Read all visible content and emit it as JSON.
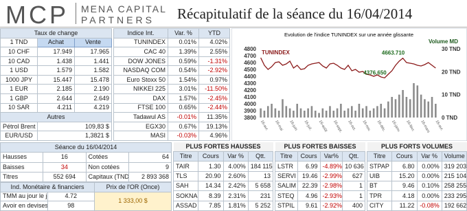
{
  "header": {
    "logo": "MCP",
    "company_line1": "MENA CAPITAL",
    "company_line2": "PARTNERS",
    "title": "Récapitulatif de la séance du 16/04/2014"
  },
  "exchange_rates": {
    "title": "Taux de change",
    "columns": [
      "1 TND",
      "Achat",
      "Vente"
    ],
    "rows": [
      [
        "10 CHF",
        "17.949",
        "17.965"
      ],
      [
        "10 CAD",
        "1.438",
        "1.441"
      ],
      [
        "1 USD",
        "1.579",
        "1.582"
      ],
      [
        "1000 JPY",
        "15.447",
        "15.478"
      ],
      [
        "1 EUR",
        "2.185",
        "2.190"
      ],
      [
        "1 GBP",
        "2.644",
        "2.649"
      ],
      [
        "10 SAR",
        "4.211",
        "4.219"
      ]
    ]
  },
  "others": {
    "title": "Autres",
    "rows": [
      [
        "Pétrol Brent",
        "109,83 $"
      ],
      [
        "EUR/USD",
        "1,3821 $"
      ]
    ]
  },
  "indices": {
    "columns": [
      "Indice Int.",
      "Var. %",
      "YTD"
    ],
    "rows": [
      [
        "TUNINDEX",
        "0.01%",
        "4.02%"
      ],
      [
        "CAC 40",
        "1.39%",
        "2.55%"
      ],
      [
        "DOW JONES",
        "0.59%",
        "-1.31%"
      ],
      [
        "NASDAQ COM",
        "0.54%",
        "-2.92%"
      ],
      [
        "Euro Stoxx 50",
        "1.54%",
        "0.97%"
      ],
      [
        "NIKKEI 225",
        "3.01%",
        "-11.50%"
      ],
      [
        "DAX",
        "1.57%",
        "-2.45%"
      ],
      [
        "FTSE 100",
        "0.65%",
        "-2.44%"
      ],
      [
        "Tadawul AS",
        "-0.01%",
        "11.35%"
      ],
      [
        "EGX30",
        "0.67%",
        "19.13%"
      ],
      [
        "MASI",
        "-0.03%",
        "4.96%"
      ]
    ]
  },
  "chart_data": {
    "type": "line",
    "title": "Evolution de l'indice TUNINDEX sur une année glissante",
    "categories": [
      "16-avr.",
      null,
      null,
      null,
      "16-mai",
      null,
      null,
      null,
      "16-juin",
      null,
      null,
      null,
      "16-juil.",
      null,
      null,
      null,
      "16-août",
      null,
      null,
      null,
      "16-sept.",
      null,
      null,
      null,
      "16-oct.",
      null,
      null,
      null,
      "16-nov.",
      null,
      null,
      null,
      "16-déc.",
      null,
      null,
      null,
      "16-janv.",
      null,
      null,
      null,
      "16-févr.",
      null,
      null,
      null,
      "16-mars",
      null,
      null,
      null,
      "16-avr."
    ],
    "series": [
      {
        "name": "TUNINDEX",
        "color": "#8b1a1a",
        "values": [
          4670,
          4560,
          4500,
          4540,
          4600,
          4610,
          4560,
          4580,
          4620,
          4520,
          4560,
          4500,
          4510,
          4560,
          4580,
          4590,
          4600,
          4550,
          4520,
          4580,
          4590,
          4560,
          4520,
          4500,
          4560,
          4480,
          4500,
          4460,
          4470,
          4430,
          4420,
          4400,
          4420,
          4390,
          4376.65,
          4430,
          4480,
          4560,
          4620,
          4663.71,
          4600,
          4590,
          4580,
          4560,
          4550,
          4570,
          4600,
          4560,
          4520
        ],
        "value_labels": [
          null,
          null,
          null,
          null,
          null,
          null,
          null,
          null,
          null,
          null,
          null,
          null,
          null,
          null,
          null,
          null,
          null,
          null,
          null,
          null,
          null,
          null,
          null,
          null,
          null,
          null,
          null,
          null,
          null,
          null,
          null,
          null,
          null,
          null,
          "4376.650",
          null,
          null,
          null,
          null,
          "4663.710",
          null,
          null,
          null,
          null,
          null,
          null,
          null,
          null,
          null
        ]
      },
      {
        "name": "Volume MD",
        "color": "#8c8c8c",
        "type": "bar",
        "axis": "y2",
        "values": [
          4,
          3,
          5,
          6,
          4,
          3,
          8,
          5,
          4,
          3,
          6,
          4,
          3,
          4,
          5,
          3,
          2,
          4,
          3,
          5,
          3,
          4,
          6,
          3,
          4,
          5,
          3,
          6,
          4,
          5,
          3,
          4,
          5,
          6,
          4,
          7,
          9,
          8,
          10,
          12,
          9,
          8,
          15,
          14,
          10,
          8,
          7,
          9,
          6
        ]
      }
    ],
    "ylim": [
      3800,
      4800
    ],
    "yticks": [
      3800,
      3900,
      4000,
      4100,
      4200,
      4300,
      4400,
      4500,
      4600,
      4700,
      4800
    ],
    "y2lim": [
      0,
      30
    ],
    "y2ticks": [
      {
        "value": 0,
        "label": "0 TND"
      },
      {
        "value": 10,
        "label": "10 TND"
      },
      {
        "value": 20,
        "label": "20 TND"
      },
      {
        "value": 30,
        "label": "30 TND"
      }
    ],
    "grid": false
  },
  "session": {
    "title": "Séance du 16/04/2014",
    "rows": [
      [
        "Hausses",
        "16",
        "Cotées",
        "64"
      ],
      [
        "Baisses",
        "34",
        "Non cotées",
        "9"
      ],
      [
        "Titres",
        "552 694",
        "Capitaux (TND)",
        "2 893 368"
      ]
    ]
  },
  "monetary": {
    "title": "Ind. Monétaire & financiers",
    "gold_title": "Prix de l'OR (Once)",
    "gold_price": "1 333,00 $",
    "rows": [
      [
        "TMM au jour le jour (%)",
        "4.72"
      ],
      [
        "Avoir en devises Jours",
        "98"
      ]
    ]
  },
  "top_gainers": {
    "title": "PLUS FORTES HAUSSES",
    "columns": [
      "Titre",
      "Cours",
      "Var %",
      "Qtt."
    ],
    "rows": [
      [
        "TAIR",
        "1.30",
        "4.00%",
        "184 115"
      ],
      [
        "TLS",
        "20.90",
        "2.60%",
        "13"
      ],
      [
        "SAH",
        "14.34",
        "2.42%",
        "5 658"
      ],
      [
        "SOKNA",
        "8.39",
        "2.31%",
        "231"
      ],
      [
        "ASSAD",
        "7.85",
        "1.81%",
        "5 252"
      ]
    ]
  },
  "top_losers": {
    "title": "PLUS FORTES BAISSES",
    "columns": [
      "Titre",
      "Cours",
      "Var%",
      "Qtt."
    ],
    "rows": [
      [
        "LSTR",
        "6.99",
        "-4.89%",
        "10 636"
      ],
      [
        "SERVI",
        "19.46",
        "-2.99%",
        "627"
      ],
      [
        "SALIM",
        "22.39",
        "-2.98%",
        "1"
      ],
      [
        "STEQ",
        "4.96",
        "-2.93%",
        "1"
      ],
      [
        "STPIL",
        "9.61",
        "-2.92%",
        "400"
      ]
    ]
  },
  "top_volumes": {
    "title": "PLUS FORTS VOLUMES",
    "columns": [
      "Titre",
      "Cours",
      "Var %",
      "Volume"
    ],
    "rows": [
      [
        "STPAP",
        "6.80",
        "0.00%",
        "319 203"
      ],
      [
        "UIB",
        "15.20",
        "0.00%",
        "215 104"
      ],
      [
        "BT",
        "9.46",
        "0.10%",
        "258 255"
      ],
      [
        "TPR",
        "4.18",
        "0.00%",
        "233 295"
      ],
      [
        "CITY",
        "11.22",
        "-0.08%",
        "192 662"
      ]
    ]
  }
}
